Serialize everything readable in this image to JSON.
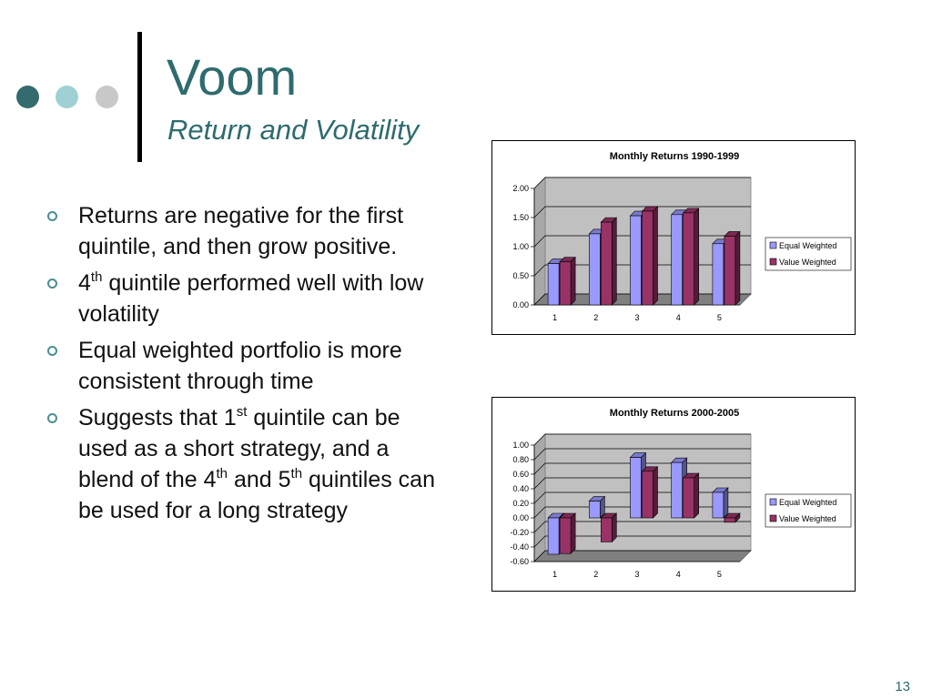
{
  "slide": {
    "title": "Voom",
    "subtitle": "Return and Volatility",
    "page_number": "13",
    "dot_colors": [
      "#336b6e",
      "#9fd0d3",
      "#c8c8c8"
    ],
    "bullet_color": "#4b8e93"
  },
  "bullets": [
    {
      "parts": [
        {
          "text": "Returns are negative for the first quintile, and then grow positive."
        }
      ]
    },
    {
      "parts": [
        {
          "text": "4"
        },
        {
          "sup": "th"
        },
        {
          "text": " quintile performed well with low volatility"
        }
      ]
    },
    {
      "parts": [
        {
          "text": "Equal weighted portfolio is more consistent through time"
        }
      ]
    },
    {
      "parts": [
        {
          "text": "Suggests that 1"
        },
        {
          "sup": "st"
        },
        {
          "text": " quintile can be used as a short strategy, and a blend of the 4"
        },
        {
          "sup": "th"
        },
        {
          "text": " and 5"
        },
        {
          "sup": "th"
        },
        {
          "text": " quintiles can be used for a long strategy"
        }
      ]
    }
  ],
  "chart_data": [
    {
      "type": "bar",
      "title": "Monthly Returns 1990-1999",
      "categories": [
        "1",
        "2",
        "3",
        "4",
        "5"
      ],
      "series": [
        {
          "name": "Equal Weighted",
          "values": [
            0.71,
            1.22,
            1.53,
            1.55,
            1.05
          ],
          "color": "#9999ff"
        },
        {
          "name": "Value Weighted",
          "values": [
            0.74,
            1.42,
            1.61,
            1.58,
            1.18
          ],
          "color": "#993366"
        }
      ],
      "ylim": [
        0,
        2
      ],
      "yticks": [
        "0.00",
        "0.50",
        "1.00",
        "1.50",
        "2.00"
      ],
      "legend": "right",
      "grid": true
    },
    {
      "type": "bar",
      "title": "Monthly Returns 2000-2005",
      "categories": [
        "1",
        "2",
        "3",
        "4",
        "5"
      ],
      "series": [
        {
          "name": "Equal Weighted",
          "values": [
            -0.5,
            0.23,
            0.83,
            0.76,
            0.35
          ],
          "color": "#9999ff"
        },
        {
          "name": "Value Weighted",
          "values": [
            -0.49,
            -0.33,
            0.64,
            0.55,
            -0.06
          ],
          "color": "#993366"
        }
      ],
      "ylim": [
        -0.6,
        1
      ],
      "yticks": [
        "-0.60",
        "-0.40",
        "-0.20",
        "0.00",
        "0.20",
        "0.40",
        "0.60",
        "0.80",
        "1.00"
      ],
      "legend": "right",
      "grid": true
    }
  ]
}
